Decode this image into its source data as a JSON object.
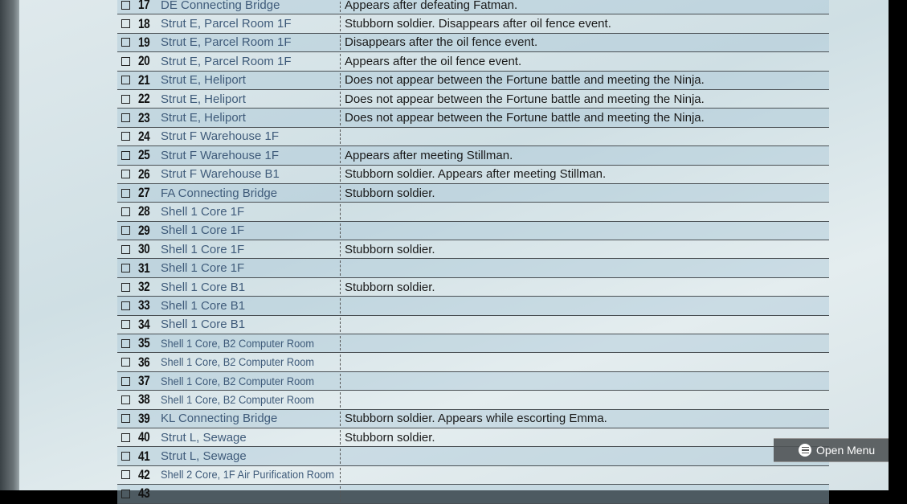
{
  "rows": [
    {
      "num": "17",
      "location": "DE Connecting Bridge",
      "note": "Appears after defeating Fatman."
    },
    {
      "num": "18",
      "location": "Strut E, Parcel Room 1F",
      "note": "Stubborn soldier. Disappears after oil fence event."
    },
    {
      "num": "19",
      "location": "Strut E, Parcel Room 1F",
      "note": "Disappears after the oil fence event."
    },
    {
      "num": "20",
      "location": "Strut E, Parcel Room 1F",
      "note": "Appears after the oil fence event."
    },
    {
      "num": "21",
      "location": "Strut E, Heliport",
      "note": "Does not appear between the Fortune battle and meeting the Ninja."
    },
    {
      "num": "22",
      "location": "Strut E, Heliport",
      "note": "Does not appear between the Fortune battle and meeting the Ninja."
    },
    {
      "num": "23",
      "location": "Strut E, Heliport",
      "note": "Does not appear between the Fortune battle and meeting the Ninja."
    },
    {
      "num": "24",
      "location": "Strut F Warehouse 1F",
      "note": ""
    },
    {
      "num": "25",
      "location": "Strut F Warehouse 1F",
      "note": "Appears after meeting Stillman."
    },
    {
      "num": "26",
      "location": "Strut F Warehouse B1",
      "note": "Stubborn soldier. Appears after meeting Stillman."
    },
    {
      "num": "27",
      "location": "FA Connecting Bridge",
      "note": "Stubborn soldier."
    },
    {
      "num": "28",
      "location": "Shell 1 Core 1F",
      "note": ""
    },
    {
      "num": "29",
      "location": "Shell 1 Core 1F",
      "note": ""
    },
    {
      "num": "30",
      "location": "Shell 1 Core 1F",
      "note": "Stubborn soldier."
    },
    {
      "num": "31",
      "location": "Shell 1 Core 1F",
      "note": ""
    },
    {
      "num": "32",
      "location": "Shell 1 Core B1",
      "note": "Stubborn soldier."
    },
    {
      "num": "33",
      "location": "Shell 1 Core B1",
      "note": ""
    },
    {
      "num": "34",
      "location": "Shell 1 Core B1",
      "note": ""
    },
    {
      "num": "35",
      "location": "Shell 1 Core, B2 Computer Room",
      "note": ""
    },
    {
      "num": "36",
      "location": "Shell 1 Core, B2 Computer Room",
      "note": ""
    },
    {
      "num": "37",
      "location": "Shell 1 Core, B2 Computer Room",
      "note": ""
    },
    {
      "num": "38",
      "location": "Shell 1 Core, B2 Computer Room",
      "note": ""
    },
    {
      "num": "39",
      "location": "KL Connecting Bridge",
      "note": "Stubborn soldier. Appears while escorting Emma."
    },
    {
      "num": "40",
      "location": "Strut L, Sewage",
      "note": "Stubborn soldier."
    },
    {
      "num": "41",
      "location": "Strut L, Sewage",
      "note": ""
    },
    {
      "num": "42",
      "location": "Shell 2 Core, 1F Air Purification Room",
      "note": ""
    },
    {
      "num": "43",
      "location": "",
      "note": ""
    }
  ],
  "menu": {
    "label": "Open Menu",
    "icon": "menu-icon"
  }
}
